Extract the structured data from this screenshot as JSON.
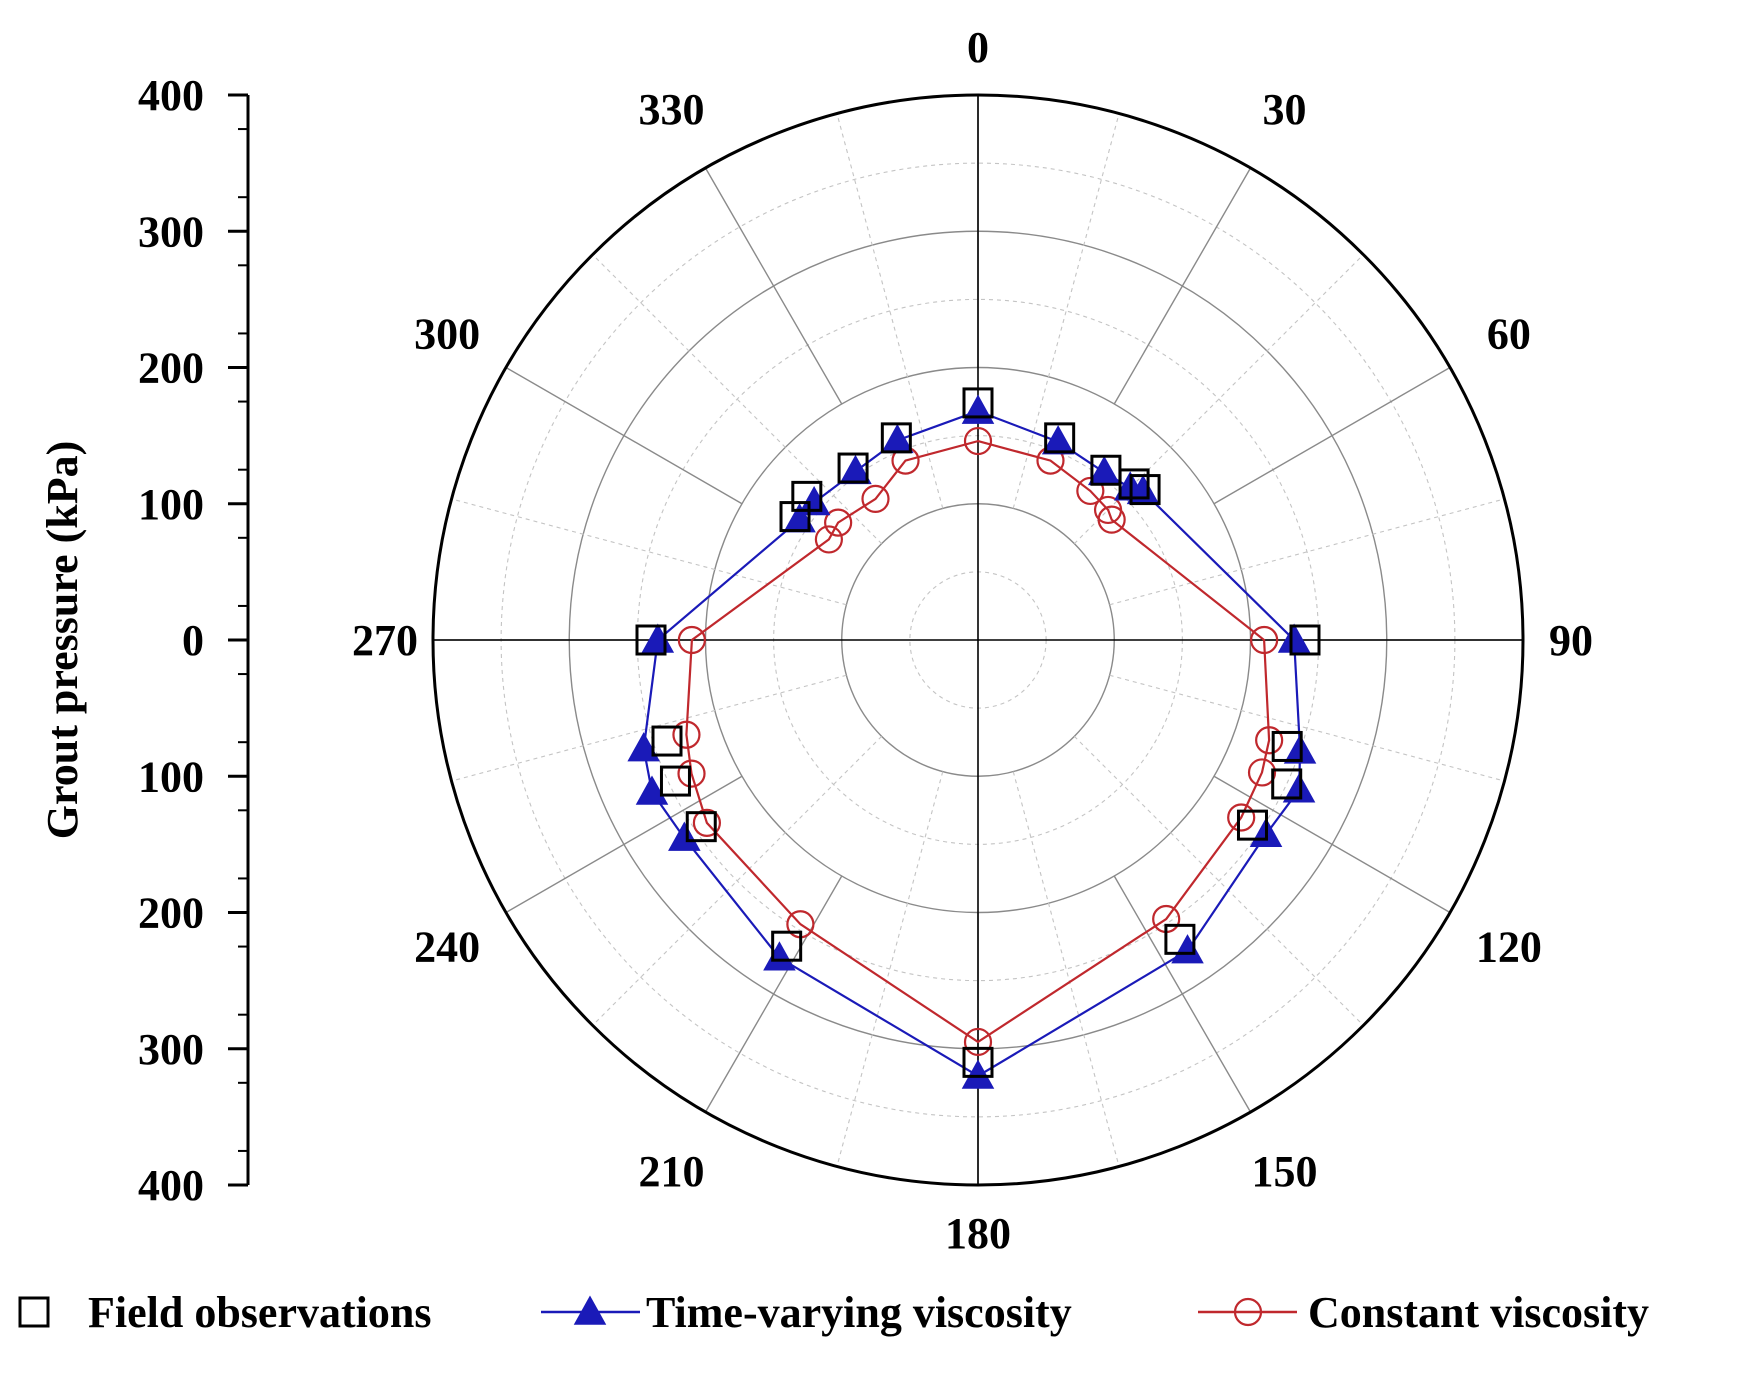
{
  "chart_data": {
    "type": "polar-line",
    "yaxis": {
      "label": "Grout pressure (kPa)",
      "ticks_upper": [
        "400",
        "300",
        "200",
        "100",
        "0"
      ],
      "ticks_lower": [
        "100",
        "200",
        "300",
        "400"
      ]
    },
    "radial_range": [
      0,
      400
    ],
    "grid": true,
    "angle_labels": [
      "0",
      "30",
      "60",
      "90",
      "120",
      "150",
      "180",
      "210",
      "240",
      "270",
      "300",
      "330"
    ],
    "series": [
      {
        "name": "Field observations",
        "marker": "square",
        "color": "#000000",
        "line": false,
        "points": [
          {
            "angle": 0,
            "value": 174
          },
          {
            "angle": 22,
            "value": 160
          },
          {
            "angle": 37,
            "value": 156
          },
          {
            "angle": 45,
            "value": 162
          },
          {
            "angle": 48,
            "value": 165
          },
          {
            "angle": 90,
            "value": 240
          },
          {
            "angle": 109,
            "value": 240
          },
          {
            "angle": 115,
            "value": 250
          },
          {
            "angle": 124,
            "value": 243
          },
          {
            "angle": 146,
            "value": 265
          },
          {
            "angle": 180,
            "value": 310
          },
          {
            "angle": 212,
            "value": 265
          },
          {
            "angle": 236,
            "value": 245
          },
          {
            "angle": 245,
            "value": 245
          },
          {
            "angle": 252,
            "value": 240
          },
          {
            "angle": 270,
            "value": 240
          },
          {
            "angle": 304,
            "value": 162
          },
          {
            "angle": 310,
            "value": 164
          },
          {
            "angle": 324,
            "value": 156
          },
          {
            "angle": 338,
            "value": 160
          }
        ]
      },
      {
        "name": "Time-varying viscosity",
        "marker": "triangle",
        "color": "#1a1ab8",
        "line": true,
        "points": [
          {
            "angle": 0,
            "value": 168
          },
          {
            "angle": 22,
            "value": 157
          },
          {
            "angle": 37,
            "value": 154
          },
          {
            "angle": 45,
            "value": 158
          },
          {
            "angle": 48,
            "value": 163
          },
          {
            "angle": 90,
            "value": 232
          },
          {
            "angle": 109,
            "value": 250
          },
          {
            "angle": 115,
            "value": 260
          },
          {
            "angle": 124,
            "value": 255
          },
          {
            "angle": 146,
            "value": 275
          },
          {
            "angle": 180,
            "value": 320
          },
          {
            "angle": 212,
            "value": 275
          },
          {
            "angle": 236,
            "value": 260
          },
          {
            "angle": 245,
            "value": 264
          },
          {
            "angle": 252,
            "value": 258
          },
          {
            "angle": 270,
            "value": 235
          },
          {
            "angle": 304,
            "value": 158
          },
          {
            "angle": 310,
            "value": 157
          },
          {
            "angle": 324,
            "value": 153
          },
          {
            "angle": 338,
            "value": 158
          }
        ]
      },
      {
        "name": "Constant viscosity",
        "marker": "circle",
        "color": "#c0282d",
        "line": true,
        "points": [
          {
            "angle": 0,
            "value": 146
          },
          {
            "angle": 22,
            "value": 142
          },
          {
            "angle": 37,
            "value": 137
          },
          {
            "angle": 45,
            "value": 135
          },
          {
            "angle": 48,
            "value": 132
          },
          {
            "angle": 90,
            "value": 210
          },
          {
            "angle": 109,
            "value": 226
          },
          {
            "angle": 115,
            "value": 230
          },
          {
            "angle": 124,
            "value": 233
          },
          {
            "angle": 146,
            "value": 247
          },
          {
            "angle": 180,
            "value": 295
          },
          {
            "angle": 212,
            "value": 246
          },
          {
            "angle": 236,
            "value": 240
          },
          {
            "angle": 245,
            "value": 232
          },
          {
            "angle": 252,
            "value": 225
          },
          {
            "angle": 270,
            "value": 210
          },
          {
            "angle": 304,
            "value": 132
          },
          {
            "angle": 310,
            "value": 134
          },
          {
            "angle": 324,
            "value": 128
          },
          {
            "angle": 338,
            "value": 142
          }
        ]
      }
    ]
  }
}
